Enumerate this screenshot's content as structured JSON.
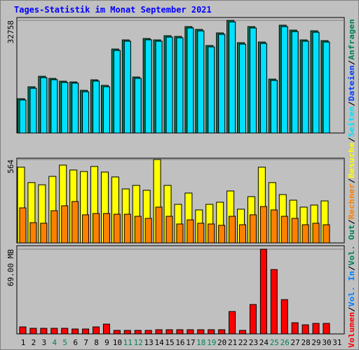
{
  "title": "Tages-Statistik im Monat September 2021",
  "legend_separator": "/",
  "categories": [
    "1",
    "2",
    "3",
    "4",
    "5",
    "6",
    "7",
    "8",
    "9",
    "10",
    "11",
    "12",
    "13",
    "14",
    "15",
    "16",
    "17",
    "18",
    "19",
    "20",
    "21",
    "22",
    "23",
    "24",
    "25",
    "26",
    "27",
    "28",
    "29",
    "30",
    "31"
  ],
  "category_colors": [
    "#000000",
    "#000000",
    "#000000",
    "#00805c",
    "#00805c",
    "#000000",
    "#000000",
    "#000000",
    "#000000",
    "#000000",
    "#00805c",
    "#00805c",
    "#000000",
    "#000000",
    "#000000",
    "#000000",
    "#000000",
    "#00805c",
    "#00805c",
    "#000000",
    "#000000",
    "#000000",
    "#000000",
    "#000000",
    "#00805c",
    "#00805c",
    "#000000",
    "#000000",
    "#000000",
    "#000000",
    "#000000"
  ],
  "chart_data": [
    {
      "type": "bar",
      "ylim": [
        0,
        33600
      ],
      "yticks": [
        32758
      ],
      "series": [
        {
          "name": "Seiten",
          "color": "#00e0ff",
          "values": [
            9600,
            13000,
            16100,
            15500,
            14700,
            14500,
            12000,
            15100,
            13450,
            24000,
            26700,
            15900,
            27100,
            26700,
            27900,
            27700,
            30550,
            29700,
            25050,
            28700,
            32300,
            25850,
            30550,
            26050,
            15300,
            30950,
            29500,
            26700,
            29300,
            26450,
            null
          ]
        },
        {
          "name": "Dateien",
          "color": "#0040ff",
          "values": [
            9600,
            13000,
            16100,
            15500,
            14700,
            14500,
            12000,
            15100,
            13450,
            24000,
            26700,
            15900,
            27100,
            26700,
            27900,
            27700,
            30550,
            29700,
            25050,
            28700,
            32300,
            25850,
            30550,
            26050,
            15300,
            30950,
            29500,
            26700,
            29300,
            26450,
            null
          ]
        },
        {
          "name": "Anfragen",
          "color": "#00805c",
          "values": [
            9980,
            13440,
            16490,
            15880,
            15070,
            14860,
            12420,
            15470,
            13850,
            24430,
            27080,
            16290,
            27490,
            27080,
            28300,
            28100,
            30950,
            30130,
            25450,
            29120,
            32758,
            26270,
            30950,
            26470,
            15680,
            31360,
            29930,
            27080,
            29730,
            26880,
            null
          ]
        }
      ]
    },
    {
      "type": "bar",
      "ylim": [
        0,
        573
      ],
      "yticks": [
        564
      ],
      "series": [
        {
          "name": "Rechner",
          "color": "#ff8000",
          "values": [
            237,
            137,
            133,
            218,
            251,
            280,
            190,
            199,
            199,
            194,
            194,
            180,
            166,
            242,
            180,
            128,
            156,
            133,
            128,
            119,
            180,
            123,
            190,
            246,
            223,
            180,
            166,
            123,
            133,
            123,
            null
          ]
        },
        {
          "name": "Besuche",
          "color": "#ffff00",
          "values": [
            512,
            408,
            393,
            450,
            526,
            493,
            483,
            517,
            479,
            446,
            365,
            389,
            356,
            564,
            389,
            261,
            337,
            223,
            261,
            275,
            351,
            228,
            313,
            512,
            408,
            327,
            289,
            242,
            256,
            284,
            null
          ]
        }
      ]
    },
    {
      "type": "bar",
      "ylim": [
        0,
        71.85
      ],
      "yticks": [
        {
          "value": 69,
          "label": "69.00 MB"
        }
      ],
      "series": [
        {
          "name": "Volumen",
          "color": "#ff0000",
          "values": [
            5.7,
            4.56,
            4.56,
            4.56,
            4.56,
            3.99,
            3.99,
            5.7,
            7.98,
            2.85,
            2.85,
            2.85,
            2.85,
            3.42,
            3.42,
            3.42,
            3.42,
            3.42,
            3.42,
            3.42,
            18.24,
            2.85,
            23.94,
            69,
            52.44,
            27.93,
            9.12,
            7.41,
            8.55,
            8.55,
            null
          ]
        },
        {
          "name": "Vol. In",
          "color": "#0080ff",
          "values": [
            0,
            0,
            0,
            0,
            0,
            0,
            0,
            0,
            0,
            0,
            0,
            0,
            0,
            0,
            0,
            0,
            0,
            0,
            0,
            0,
            0,
            0,
            0,
            0,
            0,
            0,
            0,
            0,
            0,
            0,
            null
          ]
        },
        {
          "name": "Vol. Out",
          "color": "#00805c",
          "values": [
            0,
            0,
            0,
            0,
            0,
            0,
            0,
            0,
            0,
            0,
            0,
            0,
            0,
            0,
            0,
            0,
            0,
            0,
            0,
            0,
            0,
            0,
            0,
            0,
            0,
            0,
            0,
            0,
            0,
            0,
            null
          ]
        }
      ]
    }
  ]
}
